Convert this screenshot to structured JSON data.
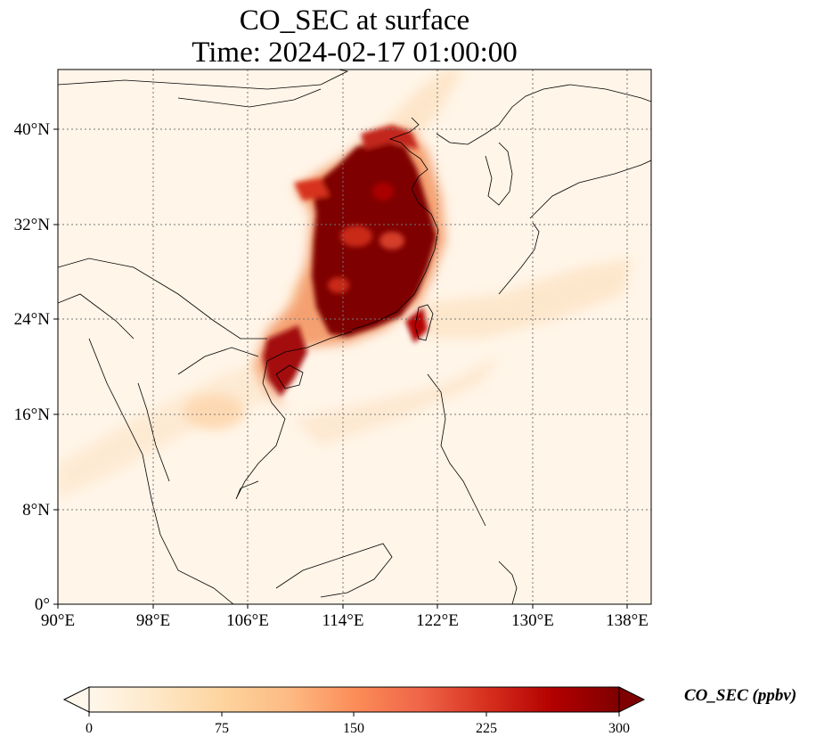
{
  "title": {
    "line1": "CO_SEC at surface",
    "line2": "Time: 2024-02-17 01:00:00"
  },
  "map": {
    "lat_ticks": [
      "40°N",
      "32°N",
      "24°N",
      "16°N",
      "8°N",
      "0°"
    ],
    "lon_ticks": [
      "90°E",
      "98°E",
      "106°E",
      "114°E",
      "122°E",
      "130°E",
      "138°E"
    ],
    "lat_range": [
      0,
      44
    ],
    "lon_range": [
      90,
      140
    ],
    "gridlines": true
  },
  "colorbar": {
    "label": "CO_SEC (ppbv)",
    "ticks": [
      "0",
      "75",
      "150",
      "225",
      "300"
    ],
    "range": [
      0,
      300
    ],
    "extend": "both",
    "colormap": "OrRd",
    "colors": [
      "#fff7ec",
      "#fee8c8",
      "#fdd49e",
      "#fdbb84",
      "#fc8d59",
      "#ef6548",
      "#d7301f",
      "#b30000",
      "#7f0000"
    ]
  }
}
